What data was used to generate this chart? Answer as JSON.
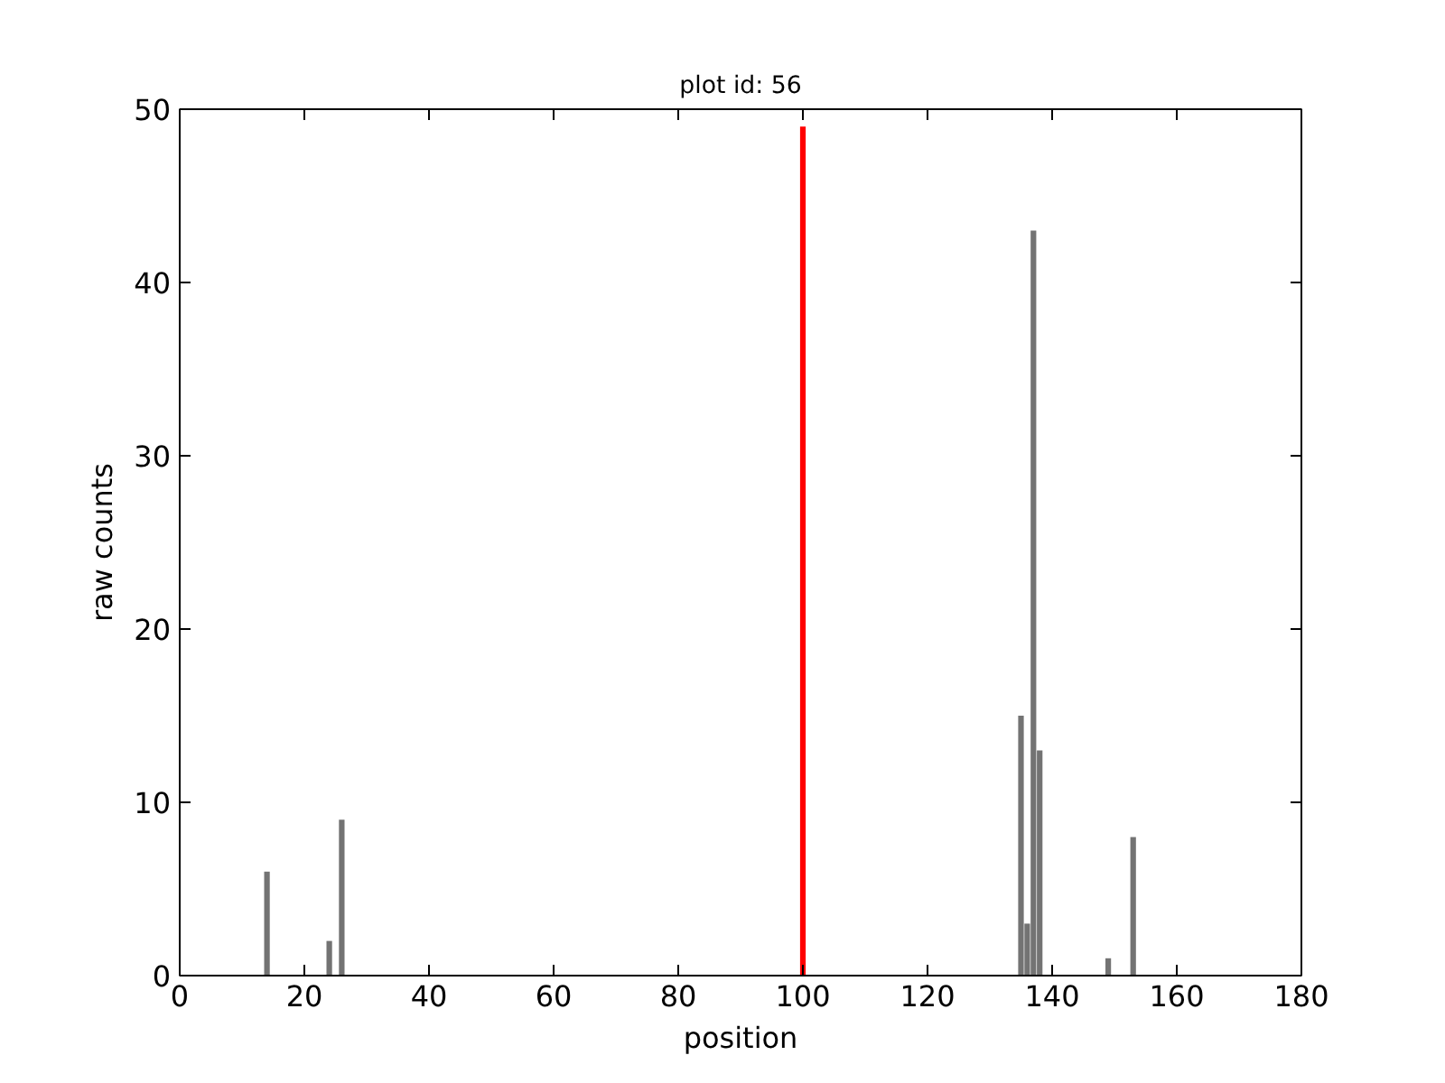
{
  "chart_data": {
    "type": "bar",
    "title": "plot id: 56",
    "xlabel": "position",
    "ylabel": "raw counts",
    "series": [
      {
        "color": "#737373",
        "x": [
          14,
          24,
          26,
          135,
          136,
          137,
          138,
          149,
          153
        ],
        "values": [
          6,
          2,
          9,
          15,
          3,
          43,
          13,
          1,
          8
        ]
      },
      {
        "color": "#ff0000",
        "x": [
          100
        ],
        "values": [
          49
        ]
      }
    ],
    "xlim": [
      0,
      180
    ],
    "xticks": [
      0,
      20,
      40,
      60,
      80,
      100,
      120,
      140,
      160,
      180
    ],
    "ylim": [
      0,
      50
    ],
    "yticks": [
      0,
      10,
      20,
      30,
      40,
      50
    ],
    "grid": false
  }
}
